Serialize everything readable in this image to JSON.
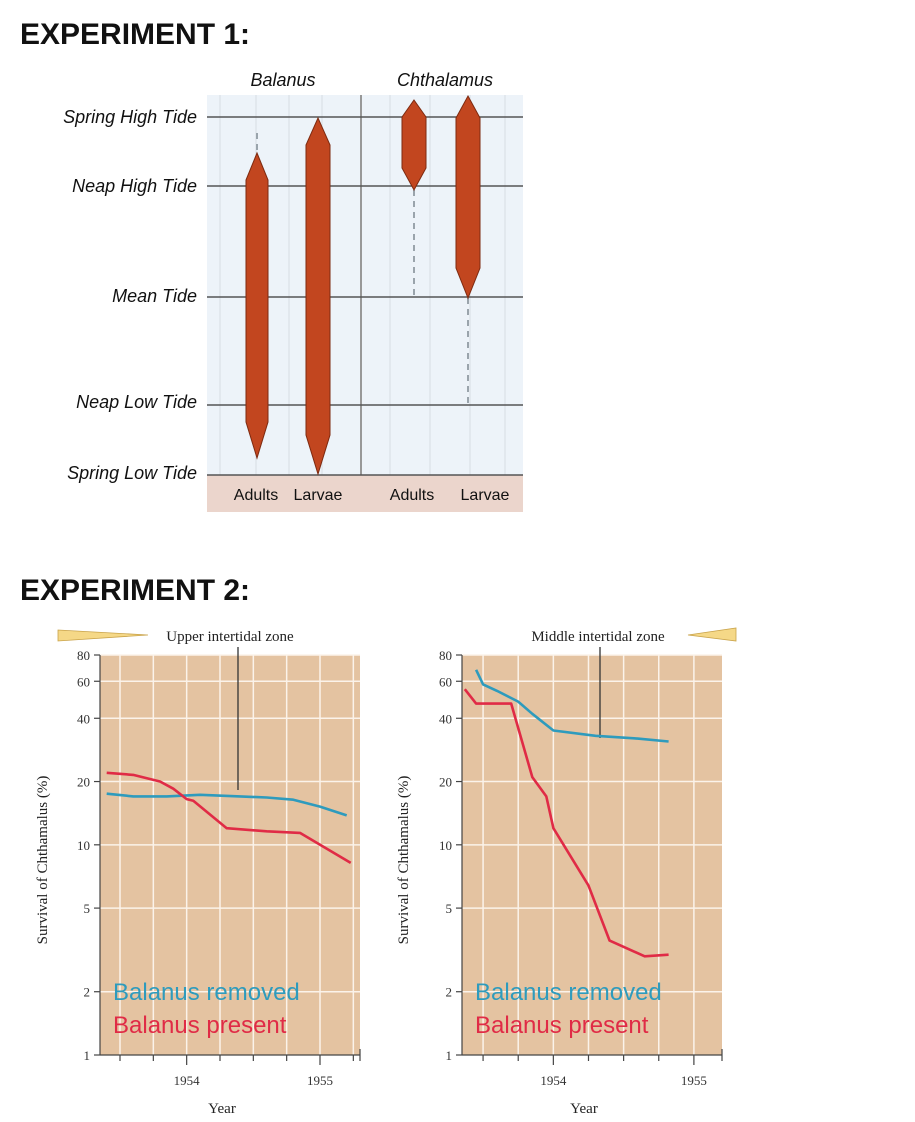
{
  "experiment1": {
    "heading": "EXPERIMENT 1:",
    "title_left": "Balanus",
    "title_right": "Chthalamus",
    "tide_labels": [
      "Spring High Tide",
      "Neap High Tide",
      "Mean Tide",
      "Neap Low Tide",
      "Spring Low Tide"
    ],
    "column_labels": [
      "Adults",
      "Larvae",
      "Adults",
      "Larvae"
    ],
    "colors": {
      "bar": "#c2461f",
      "background": "#edf3f9",
      "footer": "#ebd5cc"
    }
  },
  "experiment2": {
    "heading": "EXPERIMENT 2:"
  },
  "chart_data": [
    {
      "type": "range",
      "title": "Experiment 1",
      "y_levels": [
        "Spring High Tide",
        "Neap High Tide",
        "Mean Tide",
        "Neap Low Tide",
        "Spring Low Tide"
      ],
      "groups": [
        {
          "name": "Balanus",
          "stage": "Adults",
          "solid_top": "Neap High Tide",
          "solid_bottom": "Spring Low Tide",
          "dashed_top": "just below Spring High Tide"
        },
        {
          "name": "Balanus",
          "stage": "Larvae",
          "solid_top": "Spring High Tide",
          "solid_bottom": "Spring Low Tide"
        },
        {
          "name": "Chthalamus",
          "stage": "Adults",
          "solid_top": "Spring High Tide",
          "solid_bottom": "Neap High Tide",
          "dashed_bottom": "Mean Tide"
        },
        {
          "name": "Chthalamus",
          "stage": "Larvae",
          "solid_top": "Spring High Tide",
          "solid_bottom": "Mean Tide",
          "dashed_bottom": "Neap Low Tide"
        }
      ]
    },
    {
      "type": "line",
      "title": "Upper intertidal zone",
      "xlabel": "Year",
      "ylabel": "Survival of Chthamalus (%)",
      "y_scale": "log",
      "ylim": [
        1,
        80
      ],
      "yticks": [
        1,
        2,
        5,
        10,
        20,
        40,
        60,
        80
      ],
      "xlim": [
        1953.35,
        1955.3
      ],
      "xticks": [
        1954,
        1955
      ],
      "legend": [
        "Balanus removed",
        "Balanus present"
      ],
      "series": [
        {
          "name": "Balanus removed",
          "color": "#2e9bbd",
          "x": [
            1953.4,
            1953.6,
            1953.85,
            1954.1,
            1954.4,
            1954.6,
            1954.8,
            1955.0,
            1955.2
          ],
          "y": [
            17.5,
            17,
            17,
            17.3,
            17.0,
            16.8,
            16.4,
            15.2,
            13.8
          ]
        },
        {
          "name": "Balanus present",
          "color": "#e02b46",
          "x": [
            1953.4,
            1953.6,
            1953.8,
            1953.9,
            1954.0,
            1954.05,
            1954.3,
            1954.6,
            1954.85,
            1955.23
          ],
          "y": [
            22,
            21.5,
            20,
            18.5,
            16.5,
            16.2,
            12,
            11.6,
            11.4,
            8.2
          ]
        }
      ]
    },
    {
      "type": "line",
      "title": "Middle intertidal zone",
      "xlabel": "Year",
      "ylabel": "Survival of Chthamalus (%)",
      "y_scale": "log",
      "ylim": [
        1,
        80
      ],
      "yticks": [
        1,
        2,
        5,
        10,
        20,
        40,
        60,
        80
      ],
      "xlim": [
        1953.35,
        1955.2
      ],
      "xticks": [
        1954,
        1955
      ],
      "legend": [
        "Balanus removed",
        "Balanus present"
      ],
      "series": [
        {
          "name": "Balanus removed",
          "color": "#2e9bbd",
          "x": [
            1953.45,
            1953.5,
            1953.6,
            1953.75,
            1953.85,
            1954.0,
            1954.3,
            1954.6,
            1954.82
          ],
          "y": [
            68,
            58,
            54,
            48,
            42,
            35,
            33,
            32,
            31
          ]
        },
        {
          "name": "Balanus present",
          "color": "#e02b46",
          "x": [
            1953.37,
            1953.45,
            1953.7,
            1953.85,
            1953.95,
            1954.0,
            1954.25,
            1954.4,
            1954.65,
            1954.82
          ],
          "y": [
            55,
            47,
            47,
            21,
            17,
            12,
            6.4,
            3.5,
            2.95,
            3.0
          ]
        }
      ]
    }
  ]
}
